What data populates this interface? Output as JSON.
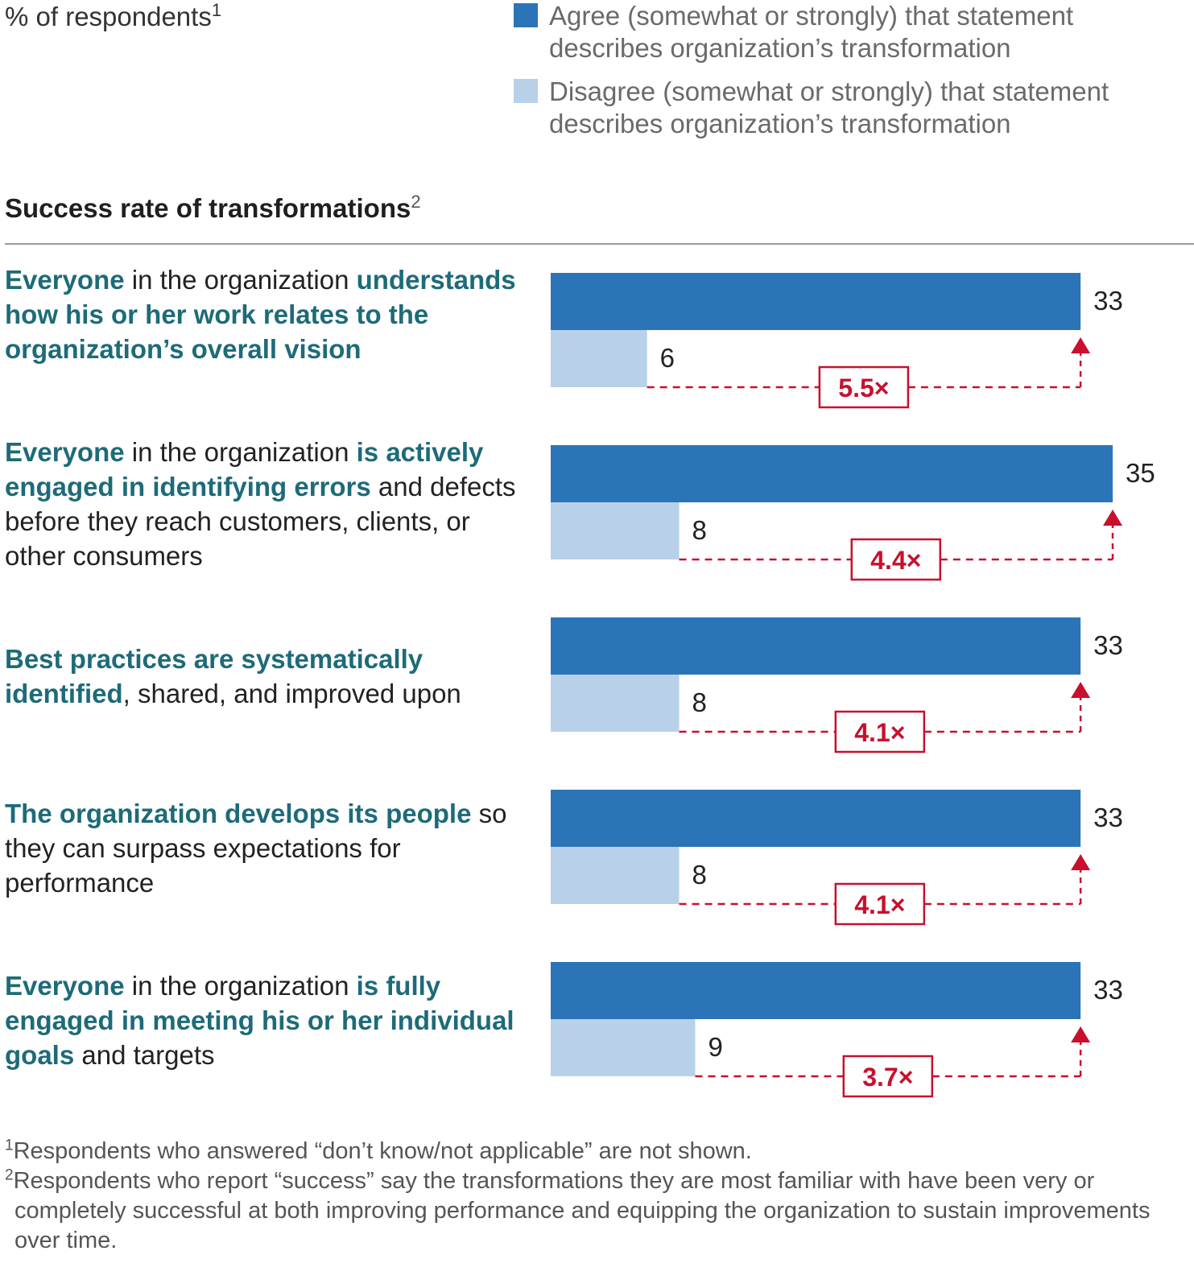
{
  "header": {
    "units_label": "% of respondents",
    "units_footnote": "1",
    "subtitle": "Success rate of transformations",
    "subtitle_footnote": "2"
  },
  "legend": {
    "agree": {
      "label": "Agree (somewhat or strongly) that statement describes organization’s transformation",
      "color": "#2c74b8"
    },
    "disagree": {
      "label": "Disagree (somewhat or strongly) that statement describes organization’s transformation",
      "color": "#b8d1e8"
    }
  },
  "statements": [
    [
      {
        "t": "Everyone",
        "b": true
      },
      {
        "t": " in the organization ",
        "b": false
      },
      {
        "t": "understands how his or her work relates to the organization’s overall vision",
        "b": true
      }
    ],
    [
      {
        "t": "Everyone",
        "b": true
      },
      {
        "t": " in the organization ",
        "b": false
      },
      {
        "t": "is actively engaged in identifying errors",
        "b": true
      },
      {
        "t": " and defects before they reach customers, clients, or other consumers",
        "b": false
      }
    ],
    [
      {
        "t": "Best practices are systematically identified",
        "b": true
      },
      {
        "t": ", shared, and improved upon",
        "b": false
      }
    ],
    [
      {
        "t": "The organization develops its people",
        "b": true
      },
      {
        "t": " so they can surpass expectations for performance",
        "b": false
      }
    ],
    [
      {
        "t": "Everyone",
        "b": true
      },
      {
        "t": " in the organization ",
        "b": false
      },
      {
        "t": "is fully engaged in meeting his or her individual goals",
        "b": true
      },
      {
        "t": " and targets",
        "b": false
      }
    ]
  ],
  "chart_data": {
    "type": "bar",
    "orientation": "horizontal",
    "title": "Success rate of transformations",
    "ylabel": "% of respondents",
    "series": [
      {
        "name": "Agree (somewhat or strongly) that statement describes organization’s transformation",
        "values": [
          33,
          35,
          33,
          33,
          33
        ]
      },
      {
        "name": "Disagree (somewhat or strongly) that statement describes organization’s transformation",
        "values": [
          6,
          8,
          8,
          8,
          9
        ]
      }
    ],
    "multipliers": [
      "5.5×",
      "4.4×",
      "4.1×",
      "4.1×",
      "3.7×"
    ],
    "xlim": [
      0,
      35
    ],
    "grid": false,
    "legend": "top-right"
  },
  "footnotes": [
    {
      "marker": "1",
      "text": "Respondents who answered “don’t know/not applicable” are not shown."
    },
    {
      "marker": "2",
      "text": "Respondents who report “success” say the transformations they are most familiar with have been very or completely successful at both improving performance and equipping the organization to sustain improvements over time."
    }
  ]
}
